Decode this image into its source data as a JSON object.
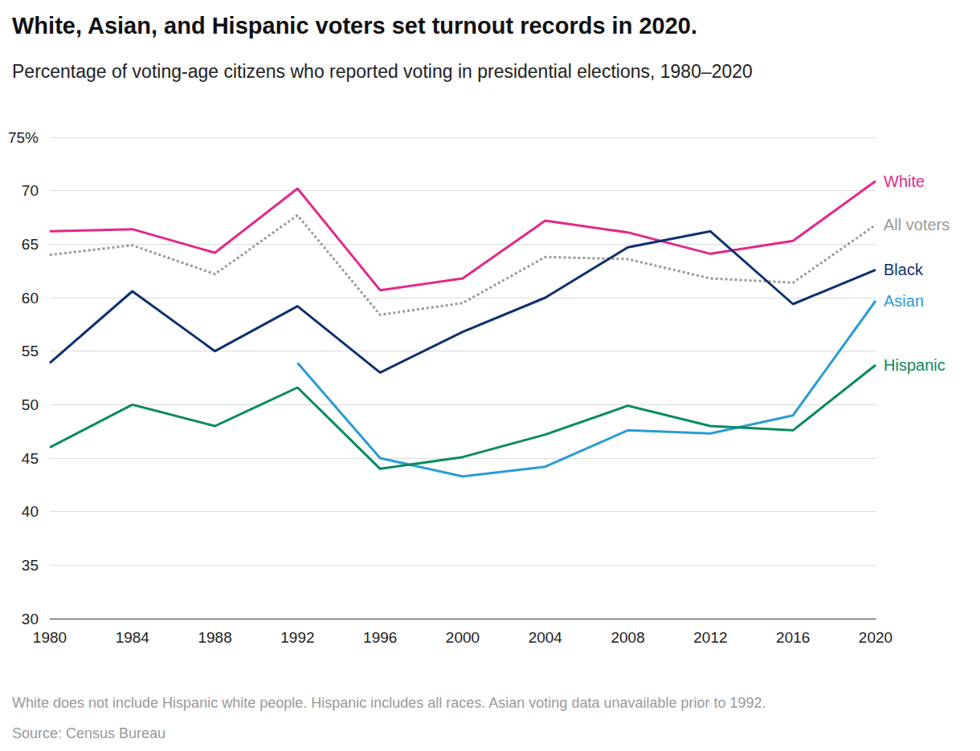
{
  "chart_data": {
    "type": "line",
    "title": "White, Asian, and Hispanic voters set turnout records in 2020.",
    "subtitle": "Percentage of voting-age citizens who reported voting in presidential elections, 1980–2020",
    "note": "White does not include Hispanic white people. Hispanic includes all races. Asian voting data unavailable prior to 1992.",
    "source": "Source: Census Bureau",
    "categories": [
      "1980",
      "1984",
      "1988",
      "1992",
      "1996",
      "2000",
      "2004",
      "2008",
      "2012",
      "2016",
      "2020"
    ],
    "series": [
      {
        "name": "White",
        "color": "#e2288c",
        "line_style": "solid",
        "values": [
          66.2,
          66.4,
          64.2,
          70.2,
          60.7,
          61.8,
          67.2,
          66.1,
          64.1,
          65.3,
          70.9
        ]
      },
      {
        "name": "All voters",
        "color": "#999999",
        "line_style": "dotted",
        "values": [
          64.0,
          64.9,
          62.2,
          67.7,
          58.4,
          59.5,
          63.8,
          63.6,
          61.8,
          61.4,
          66.8
        ]
      },
      {
        "name": "Black",
        "color": "#0d3170",
        "line_style": "solid",
        "values": [
          53.9,
          60.6,
          55.0,
          59.2,
          53.0,
          56.8,
          60.0,
          64.7,
          66.2,
          59.4,
          62.6
        ]
      },
      {
        "name": "Asian",
        "color": "#2b9bd6",
        "line_style": "solid",
        "values": [
          null,
          null,
          null,
          53.9,
          45.0,
          43.3,
          44.2,
          47.6,
          47.3,
          49.0,
          59.7
        ]
      },
      {
        "name": "Hispanic",
        "color": "#0a8a62",
        "line_style": "solid",
        "values": [
          46.0,
          50.0,
          48.0,
          51.6,
          44.0,
          45.1,
          47.2,
          49.9,
          48.0,
          47.6,
          53.7
        ]
      }
    ],
    "ylim": [
      30,
      75
    ],
    "yticks": [
      30,
      35,
      40,
      45,
      50,
      55,
      60,
      65,
      70,
      {
        "value": 75,
        "label": "75%"
      }
    ],
    "grid": true
  }
}
